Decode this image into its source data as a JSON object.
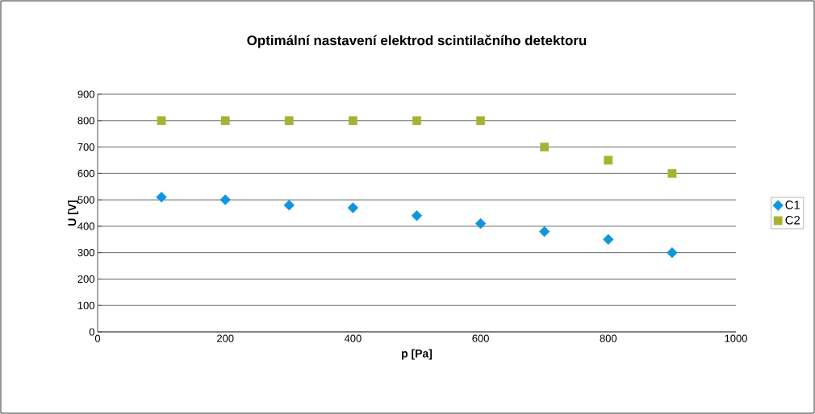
{
  "chart_data": {
    "type": "scatter",
    "title": "Optimální nastavení elektrod scintilačního detektoru",
    "xlabel": "p [Pa]",
    "ylabel": "U [V]",
    "x": [
      100,
      200,
      300,
      400,
      500,
      600,
      700,
      800,
      900
    ],
    "series": [
      {
        "name": "C1",
        "color": "#0f96dc",
        "marker": "diamond",
        "values": [
          510,
          500,
          480,
          470,
          440,
          410,
          380,
          350,
          300
        ]
      },
      {
        "name": "C2",
        "color": "#a8b232",
        "marker": "square",
        "values": [
          800,
          800,
          800,
          800,
          800,
          800,
          700,
          650,
          600
        ]
      }
    ],
    "xlim": [
      0,
      1000
    ],
    "xticks": [
      0,
      200,
      400,
      600,
      800,
      1000
    ],
    "ylim": [
      0,
      900
    ],
    "yticks": [
      0,
      100,
      200,
      300,
      400,
      500,
      600,
      700,
      800,
      900
    ],
    "grid": "y",
    "legend": "right"
  }
}
